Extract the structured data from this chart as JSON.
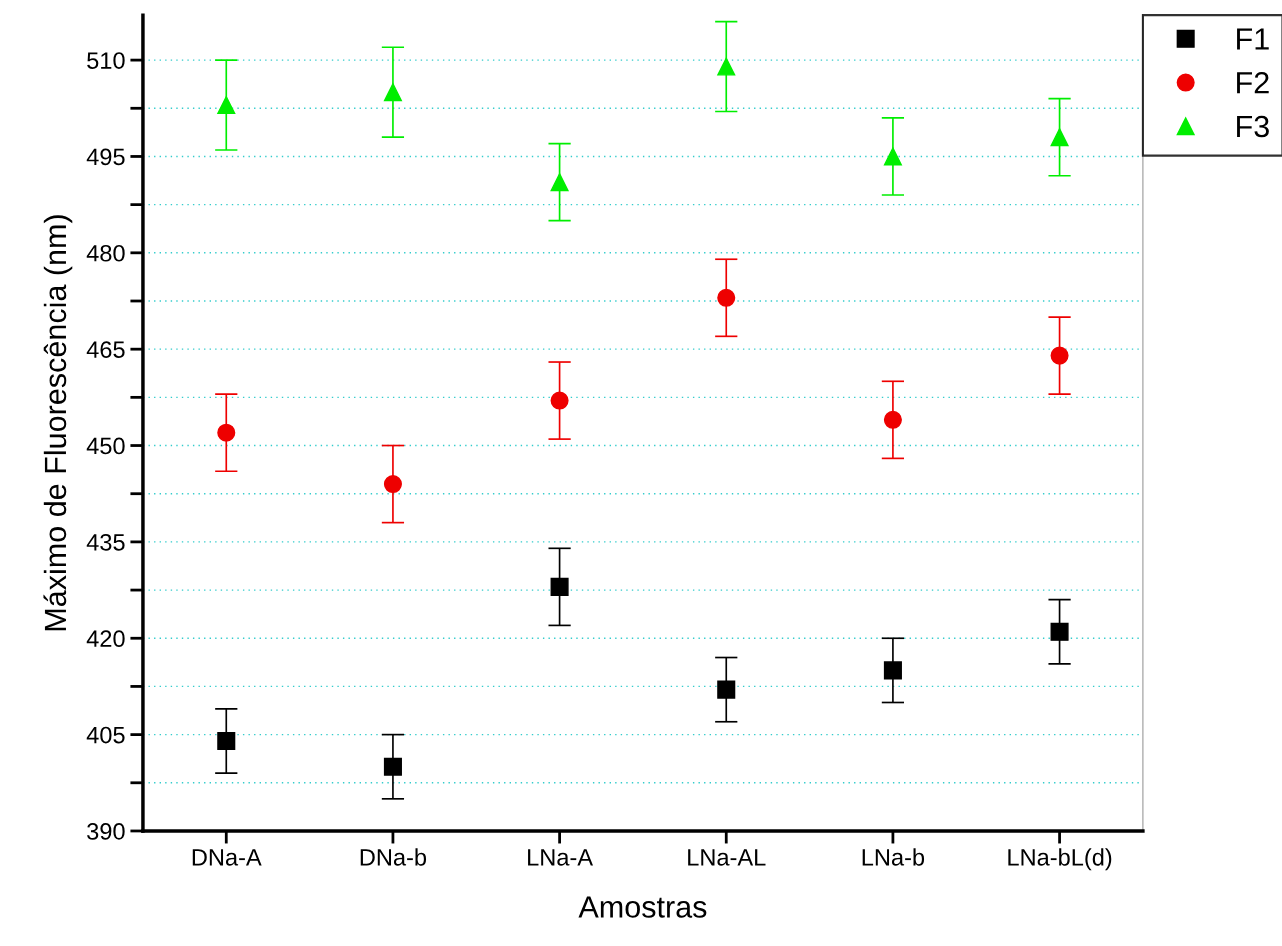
{
  "chart_data": {
    "type": "scatter",
    "xlabel": "Amostras",
    "ylabel": "Máximo de Fluorescência (nm)",
    "categories": [
      "DNa-A",
      "DNa-b",
      "LNa-A",
      "LNa-AL",
      "LNa-b",
      "LNa-bL(d)"
    ],
    "series": [
      {
        "name": "F1",
        "color": "#000000",
        "marker": "square",
        "values": [
          404,
          400,
          428,
          412,
          415,
          421
        ],
        "errors": [
          5,
          5,
          6,
          5,
          5,
          5
        ]
      },
      {
        "name": "F2",
        "color": "#ee0000",
        "marker": "circle",
        "values": [
          452,
          444,
          457,
          473,
          454,
          464
        ],
        "errors": [
          6,
          6,
          6,
          6,
          6,
          6
        ]
      },
      {
        "name": "F3",
        "color": "#00ee00",
        "marker": "triangle",
        "values": [
          503,
          505,
          491,
          509,
          495,
          498
        ],
        "errors": [
          7,
          7,
          6,
          7,
          6,
          6
        ]
      }
    ],
    "ylim": [
      390,
      517
    ],
    "yticks": [
      390,
      {
        "value": 397.5,
        "label": null
      },
      405,
      {
        "value": 412.5,
        "label": null
      },
      420,
      {
        "value": 427.5,
        "label": null
      },
      435,
      {
        "value": 442.5,
        "label": null
      },
      450,
      {
        "value": 457.5,
        "label": null
      },
      465,
      {
        "value": 472.5,
        "label": null
      },
      480,
      {
        "value": 487.5,
        "label": null
      },
      495,
      {
        "value": 502.5,
        "label": null
      },
      510
    ],
    "grid": "y",
    "legend": "top right"
  }
}
